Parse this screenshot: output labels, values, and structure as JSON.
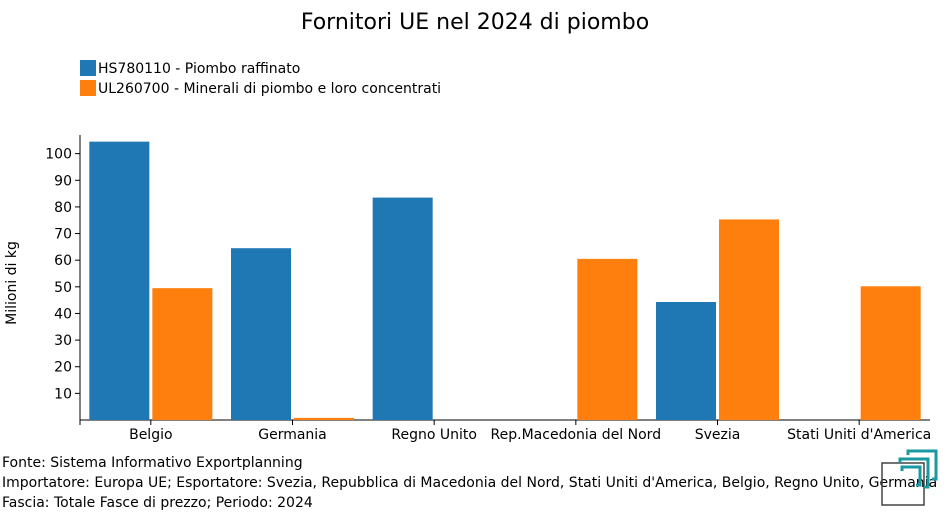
{
  "chart_data": {
    "type": "bar",
    "title": "Fornitori UE nel 2024 di piombo",
    "xlabel": "",
    "ylabel": "Milioni di kg",
    "categories": [
      "Belgio",
      "Germania",
      "Regno Unito",
      "Rep.Macedonia del Nord",
      "Svezia",
      "Stati Uniti d'America"
    ],
    "series": [
      {
        "name": "HS780110 - Piombo raffinato",
        "color": "#1f77b4",
        "values": [
          104.5,
          64.5,
          83.5,
          null,
          44.3,
          null
        ]
      },
      {
        "name": "UL260700 - Minerali di piombo e loro concentrati",
        "color": "#ff7f0e",
        "values": [
          49.5,
          0.8,
          null,
          60.5,
          75.3,
          50.2
        ]
      }
    ],
    "ylim": [
      0,
      107
    ],
    "yticks": [
      10,
      20,
      30,
      40,
      50,
      60,
      70,
      80,
      90,
      100
    ],
    "legend_position": "top-left",
    "grid": false
  },
  "footer": {
    "source": "Fonte: Sistema Informativo Exportplanning",
    "details": "Importatore: Europa UE; Esportatore: Svezia, Repubblica di Macedonia del Nord, Stati Uniti d'America, Belgio, Regno Unito, Germania",
    "band": "Fascia: Totale Fasce di prezzo; Periodo: 2024"
  },
  "logo": {
    "icon": "exportplanning-logo-icon",
    "color": "#1a9aa0"
  }
}
